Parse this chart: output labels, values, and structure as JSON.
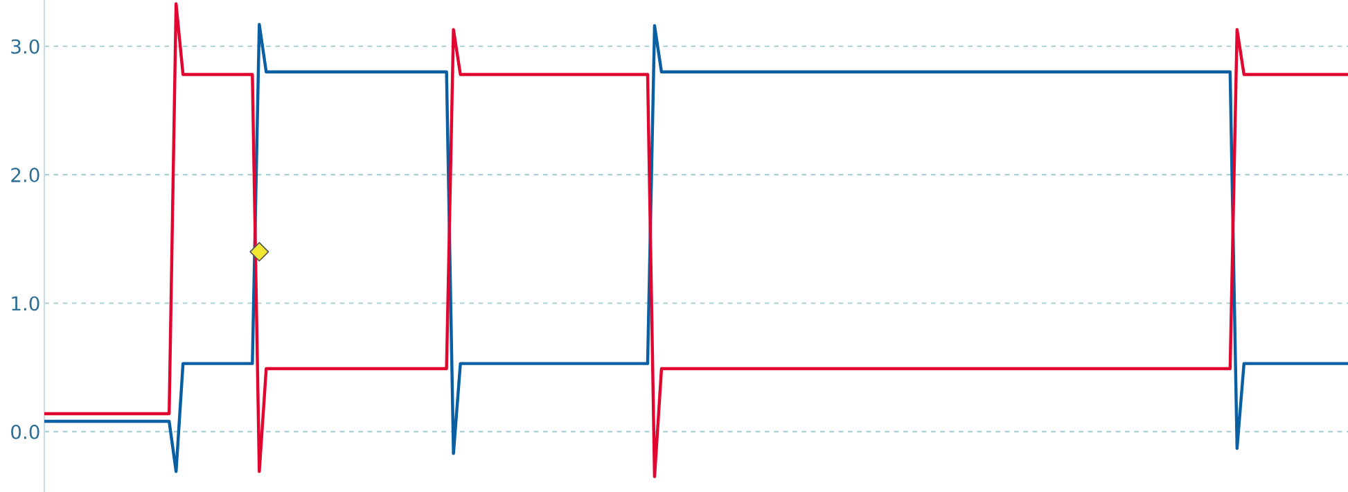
{
  "chart_data": {
    "type": "line",
    "categories": [
      null,
      null,
      null,
      null,
      null,
      null,
      null,
      null,
      null,
      null,
      null,
      null,
      null,
      null,
      null,
      null,
      null,
      null,
      null,
      null,
      null,
      null,
      null,
      null,
      null,
      null,
      null,
      null,
      null,
      null,
      null,
      null,
      null,
      null,
      null,
      null,
      null,
      null,
      null,
      null,
      null,
      null,
      null,
      null,
      null,
      null,
      null,
      null,
      null,
      null,
      null,
      null,
      null,
      null,
      null,
      null,
      null,
      null,
      null,
      null,
      null,
      null,
      null,
      null,
      null,
      null,
      null,
      null,
      null,
      null,
      null,
      null,
      null,
      null,
      null,
      null,
      null,
      null,
      null,
      null,
      null,
      null,
      null,
      null,
      null,
      null,
      null,
      null,
      null,
      null,
      null,
      null,
      null,
      null,
      null,
      null,
      null,
      null,
      null,
      null,
      null,
      null,
      null,
      null,
      null,
      null,
      null,
      null,
      null,
      null,
      null,
      null,
      null,
      null,
      null,
      null,
      null,
      null,
      null,
      null,
      null,
      null,
      null,
      null,
      null,
      null,
      null,
      null,
      null,
      null,
      null,
      null,
      null,
      null,
      null,
      null,
      null,
      null,
      null,
      null,
      null,
      null,
      null,
      null,
      null,
      null,
      null,
      null,
      null,
      null,
      null,
      null,
      null,
      null,
      null,
      null,
      null,
      null,
      null,
      null,
      null,
      null,
      null,
      null,
      null,
      null,
      null,
      null,
      null,
      null,
      null,
      null,
      null,
      null,
      null,
      null,
      null,
      null,
      null,
      null,
      null,
      null,
      null,
      null,
      null,
      null,
      null,
      null,
      null
    ],
    "ylim": [
      -0.47,
      3.36
    ],
    "yticks": [
      {
        "value": 0,
        "label": "0.0"
      },
      {
        "value": 1,
        "label": "1.0"
      },
      {
        "value": 2,
        "label": "2.0"
      },
      {
        "value": 3,
        "label": "3.0"
      }
    ],
    "tick_labels": "y",
    "grid": "y",
    "line_style": "solid",
    "marker": "none",
    "series": [
      {
        "color": "#0a5fa3",
        "values": [
          0.08,
          0.08,
          0.08,
          0.08,
          0.08,
          0.08,
          0.08,
          0.08,
          0.08,
          0.08,
          0.08,
          0.08,
          0.08,
          0.08,
          0.08,
          0.08,
          0.08,
          0.08,
          0.08,
          -0.31,
          0.53,
          0.53,
          0.53,
          0.53,
          0.53,
          0.53,
          0.53,
          0.53,
          0.53,
          0.53,
          0.53,
          3.17,
          2.8,
          2.8,
          2.8,
          2.8,
          2.8,
          2.8,
          2.8,
          2.8,
          2.8,
          2.8,
          2.8,
          2.8,
          2.8,
          2.8,
          2.8,
          2.8,
          2.8,
          2.8,
          2.8,
          2.8,
          2.8,
          2.8,
          2.8,
          2.8,
          2.8,
          2.8,
          2.8,
          -0.17,
          0.53,
          0.53,
          0.53,
          0.53,
          0.53,
          0.53,
          0.53,
          0.53,
          0.53,
          0.53,
          0.53,
          0.53,
          0.53,
          0.53,
          0.53,
          0.53,
          0.53,
          0.53,
          0.53,
          0.53,
          0.53,
          0.53,
          0.53,
          0.53,
          0.53,
          0.53,
          0.53,
          0.53,
          3.16,
          2.8,
          2.8,
          2.8,
          2.8,
          2.8,
          2.8,
          2.8,
          2.8,
          2.8,
          2.8,
          2.8,
          2.8,
          2.8,
          2.8,
          2.8,
          2.8,
          2.8,
          2.8,
          2.8,
          2.8,
          2.8,
          2.8,
          2.8,
          2.8,
          2.8,
          2.8,
          2.8,
          2.8,
          2.8,
          2.8,
          2.8,
          2.8,
          2.8,
          2.8,
          2.8,
          2.8,
          2.8,
          2.8,
          2.8,
          2.8,
          2.8,
          2.8,
          2.8,
          2.8,
          2.8,
          2.8,
          2.8,
          2.8,
          2.8,
          2.8,
          2.8,
          2.8,
          2.8,
          2.8,
          2.8,
          2.8,
          2.8,
          2.8,
          2.8,
          2.8,
          2.8,
          2.8,
          2.8,
          2.8,
          2.8,
          2.8,
          2.8,
          2.8,
          2.8,
          2.8,
          2.8,
          2.8,
          2.8,
          2.8,
          2.8,
          2.8,
          2.8,
          2.8,
          2.8,
          2.8,
          2.8,
          2.8,
          2.8,
          -0.13,
          0.53,
          0.53,
          0.53,
          0.53,
          0.53,
          0.53,
          0.53,
          0.53,
          0.53,
          0.53,
          0.53,
          0.53,
          0.53,
          0.53,
          0.53,
          0.53
        ]
      },
      {
        "color": "#e0062f",
        "values": [
          0.14,
          0.14,
          0.14,
          0.14,
          0.14,
          0.14,
          0.14,
          0.14,
          0.14,
          0.14,
          0.14,
          0.14,
          0.14,
          0.14,
          0.14,
          0.14,
          0.14,
          0.14,
          0.14,
          3.33,
          2.78,
          2.78,
          2.78,
          2.78,
          2.78,
          2.78,
          2.78,
          2.78,
          2.78,
          2.78,
          2.78,
          -0.31,
          0.49,
          0.49,
          0.49,
          0.49,
          0.49,
          0.49,
          0.49,
          0.49,
          0.49,
          0.49,
          0.49,
          0.49,
          0.49,
          0.49,
          0.49,
          0.49,
          0.49,
          0.49,
          0.49,
          0.49,
          0.49,
          0.49,
          0.49,
          0.49,
          0.49,
          0.49,
          0.49,
          3.13,
          2.78,
          2.78,
          2.78,
          2.78,
          2.78,
          2.78,
          2.78,
          2.78,
          2.78,
          2.78,
          2.78,
          2.78,
          2.78,
          2.78,
          2.78,
          2.78,
          2.78,
          2.78,
          2.78,
          2.78,
          2.78,
          2.78,
          2.78,
          2.78,
          2.78,
          2.78,
          2.78,
          2.78,
          -0.35,
          0.49,
          0.49,
          0.49,
          0.49,
          0.49,
          0.49,
          0.49,
          0.49,
          0.49,
          0.49,
          0.49,
          0.49,
          0.49,
          0.49,
          0.49,
          0.49,
          0.49,
          0.49,
          0.49,
          0.49,
          0.49,
          0.49,
          0.49,
          0.49,
          0.49,
          0.49,
          0.49,
          0.49,
          0.49,
          0.49,
          0.49,
          0.49,
          0.49,
          0.49,
          0.49,
          0.49,
          0.49,
          0.49,
          0.49,
          0.49,
          0.49,
          0.49,
          0.49,
          0.49,
          0.49,
          0.49,
          0.49,
          0.49,
          0.49,
          0.49,
          0.49,
          0.49,
          0.49,
          0.49,
          0.49,
          0.49,
          0.49,
          0.49,
          0.49,
          0.49,
          0.49,
          0.49,
          0.49,
          0.49,
          0.49,
          0.49,
          0.49,
          0.49,
          0.49,
          0.49,
          0.49,
          0.49,
          0.49,
          0.49,
          0.49,
          0.49,
          0.49,
          0.49,
          0.49,
          0.49,
          0.49,
          0.49,
          0.49,
          3.13,
          2.78,
          2.78,
          2.78,
          2.78,
          2.78,
          2.78,
          2.78,
          2.78,
          2.78,
          2.78,
          2.78,
          2.78,
          2.78,
          2.78,
          2.78,
          2.78
        ]
      },
      {
        "type": "scatter",
        "marker": "diamond",
        "color": "#f2e633",
        "values": [
          null,
          null,
          null,
          null,
          null,
          null,
          null,
          null,
          null,
          null,
          null,
          null,
          null,
          null,
          null,
          null,
          null,
          null,
          null,
          null,
          null,
          null,
          null,
          null,
          null,
          null,
          null,
          null,
          null,
          null,
          null,
          1.4,
          null,
          null,
          null,
          null,
          null,
          null,
          null,
          null,
          null,
          null,
          null,
          null,
          null,
          null,
          null,
          null,
          null,
          null,
          null,
          null,
          null,
          null,
          null,
          null,
          null,
          null,
          null,
          null,
          null,
          null,
          null,
          null,
          null,
          null,
          null,
          null,
          null,
          null,
          null,
          null,
          null,
          null,
          null,
          null,
          null,
          null,
          null,
          null,
          null,
          null,
          null,
          null,
          null,
          null,
          null,
          null,
          null,
          null,
          null,
          null,
          null,
          null,
          null,
          null,
          null,
          null,
          null,
          null,
          null,
          null,
          null,
          null,
          null,
          null,
          null,
          null,
          null,
          null,
          null,
          null,
          null,
          null,
          null,
          null,
          null,
          null,
          null,
          null,
          null,
          null,
          null,
          null,
          null,
          null,
          null,
          null,
          null,
          null,
          null,
          null,
          null,
          null,
          null,
          null,
          null,
          null,
          null,
          null,
          null,
          null,
          null,
          null,
          null,
          null,
          null,
          null,
          null,
          null,
          null,
          null,
          null,
          null,
          null,
          null,
          null,
          null,
          null,
          null,
          null,
          null,
          null,
          null,
          null,
          null,
          null,
          null,
          null,
          null,
          null,
          null,
          null,
          null,
          null,
          null,
          null,
          null,
          null,
          null,
          null,
          null,
          null,
          null,
          null,
          null,
          null,
          null,
          null
        ]
      }
    ]
  }
}
